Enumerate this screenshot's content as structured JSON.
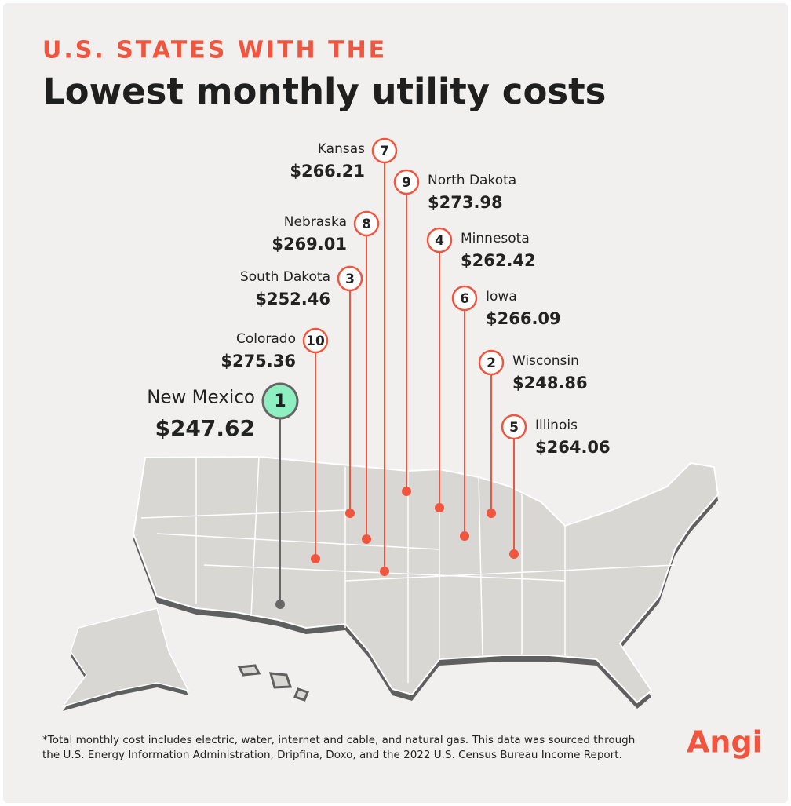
{
  "header": {
    "kicker": "U.S. STATES WITH THE",
    "title": "Lowest monthly utility costs"
  },
  "states": [
    {
      "rank": "1",
      "name": "New Mexico",
      "cost": "$247.62"
    },
    {
      "rank": "2",
      "name": "Wisconsin",
      "cost": "$248.86"
    },
    {
      "rank": "3",
      "name": "South Dakota",
      "cost": "$252.46"
    },
    {
      "rank": "4",
      "name": "Minnesota",
      "cost": "$262.42"
    },
    {
      "rank": "5",
      "name": "Illinois",
      "cost": "$264.06"
    },
    {
      "rank": "6",
      "name": "Iowa",
      "cost": "$266.09"
    },
    {
      "rank": "7",
      "name": "Kansas",
      "cost": "$266.21"
    },
    {
      "rank": "8",
      "name": "Nebraska",
      "cost": "$269.01"
    },
    {
      "rank": "9",
      "name": "North Dakota",
      "cost": "$273.98"
    },
    {
      "rank": "10",
      "name": "Colorado",
      "cost": "$275.36"
    }
  ],
  "footnote": [
    "*Total monthly cost includes electric, water, internet and cable, and natural gas. This data was sourced through",
    "the U.S. Energy Information Administration, Dripfina, Doxo, and the 2022 U.S. Census Bureau Income Report."
  ],
  "logo": "Angi"
}
